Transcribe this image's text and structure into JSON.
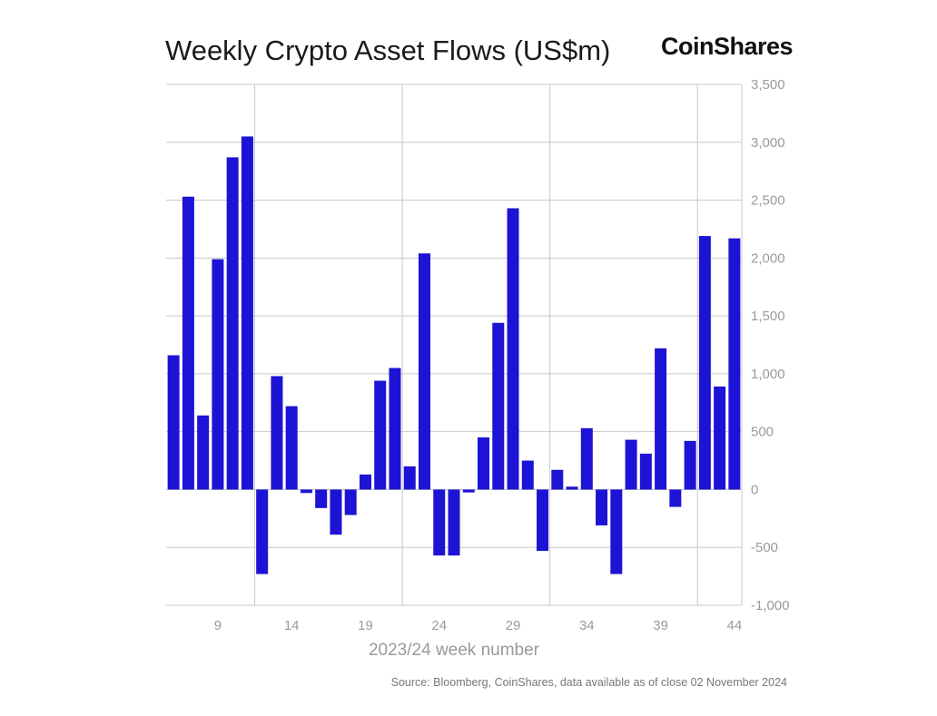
{
  "chart_data": {
    "type": "bar",
    "title": "Weekly Crypto Asset Flows (US$m)",
    "brand": "CoinShares",
    "xlabel": "2023/24 week number",
    "ylabel": "",
    "ylim": [
      -1000,
      3500
    ],
    "yticks": [
      -1000,
      -500,
      0,
      500,
      1000,
      1500,
      2000,
      2500,
      3000,
      3500
    ],
    "ytick_labels": [
      "-1,000",
      "-500",
      "0",
      "500",
      "1,000",
      "1,500",
      "2,000",
      "2,500",
      "3,000",
      "3,500"
    ],
    "x_start_week": 6,
    "xticks": [
      9,
      14,
      19,
      24,
      29,
      34,
      39,
      44
    ],
    "xtick_labels": [
      "9",
      "14",
      "19",
      "24",
      "29",
      "34",
      "39",
      "44"
    ],
    "grid": true,
    "bar_color": "#1d13d4",
    "categories": [
      "6",
      "7",
      "8",
      "9",
      "10",
      "11",
      "12",
      "13",
      "14",
      "15",
      "16",
      "17",
      "18",
      "19",
      "20",
      "21",
      "22",
      "23",
      "24",
      "25",
      "26",
      "27",
      "28",
      "29",
      "30",
      "31",
      "32",
      "33",
      "34",
      "35",
      "36",
      "37",
      "38",
      "39",
      "40",
      "41",
      "42",
      "43",
      "44"
    ],
    "values": [
      1160,
      2530,
      640,
      1990,
      2870,
      3050,
      -730,
      980,
      720,
      -30,
      -160,
      -390,
      -220,
      130,
      940,
      1050,
      200,
      2040,
      -570,
      -570,
      -25,
      450,
      1440,
      2430,
      250,
      -530,
      170,
      25,
      530,
      -310,
      -730,
      430,
      310,
      1220,
      -150,
      420,
      2190,
      890,
      2170
    ]
  },
  "source": "Source: Bloomberg, CoinShares, data available as of close 02 November 2024"
}
